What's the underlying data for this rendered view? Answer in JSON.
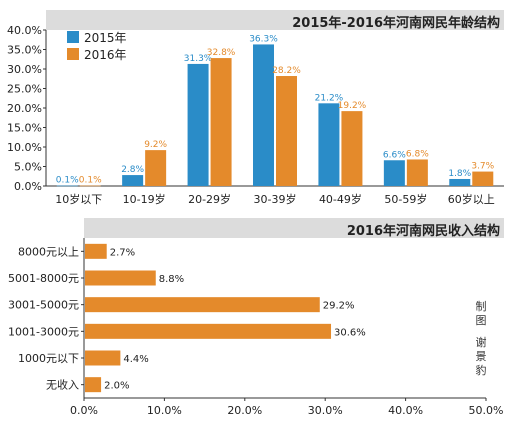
{
  "colors": {
    "blue": "#2a8cc8",
    "orange": "#e48a2b",
    "title_bar": "#dcdcdc",
    "axis": "#333333"
  },
  "credit": [
    "制",
    "图",
    "谢",
    "景",
    "豹"
  ],
  "chart_data": [
    {
      "type": "bar",
      "title": "2015年-2016年河南网民年龄结构",
      "categories": [
        "10岁以下",
        "10-19岁",
        "20-29岁",
        "30-39岁",
        "40-49岁",
        "50-59岁",
        "60岁以上"
      ],
      "series": [
        {
          "name": "2015年",
          "color": "#2a8cc8",
          "values": [
            0.1,
            2.8,
            31.3,
            36.3,
            21.2,
            6.6,
            1.8
          ],
          "labels": [
            "0.1%",
            "2.8%",
            "31.3%",
            "36.3%",
            "21.2%",
            "6.6%",
            "1.8%"
          ]
        },
        {
          "name": "2016年",
          "color": "#e48a2b",
          "values": [
            0.1,
            9.2,
            32.8,
            28.2,
            19.2,
            6.8,
            3.7
          ],
          "labels": [
            "0.1%",
            "9.2%",
            "32.8%",
            "28.2%",
            "19.2%",
            "6.8%",
            "3.7%"
          ]
        }
      ],
      "yticks": [
        "0.0%",
        "5.0%",
        "10.0%",
        "15.0%",
        "20.0%",
        "25.0%",
        "30.0%",
        "35.0%",
        "40.0%"
      ],
      "ylim": [
        0,
        40
      ],
      "legend": "top-left",
      "grid": false
    },
    {
      "type": "bar",
      "orientation": "horizontal",
      "title": "2016年河南网民收入结构",
      "categories": [
        "8000元以上",
        "5001-8000元",
        "3001-5000元",
        "1001-3000元",
        "1000元以下",
        "无收入"
      ],
      "values": [
        2.7,
        8.8,
        29.2,
        30.6,
        4.4,
        2.0
      ],
      "labels": [
        "2.7%",
        "8.8%",
        "29.2%",
        "30.6%",
        "4.4%",
        "2.0%"
      ],
      "color": "#e48a2b",
      "xticks": [
        "0.0%",
        "10.0%",
        "20.0%",
        "30.0%",
        "40.0%",
        "50.0%"
      ],
      "xlim": [
        0,
        50
      ],
      "grid": false
    }
  ]
}
